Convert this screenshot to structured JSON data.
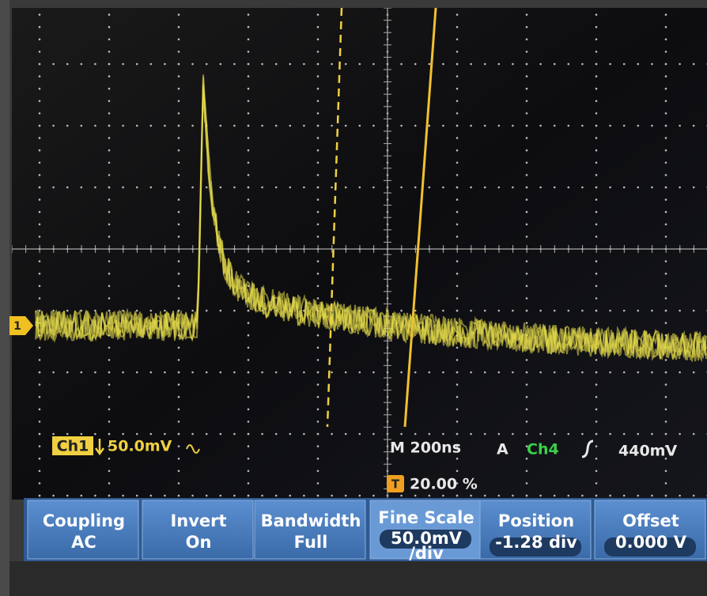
{
  "screen": {
    "channel_marker": "1",
    "status": {
      "channel": "Ch1",
      "scale": "50.0mV",
      "timebase": "M 200ns",
      "trigger_mode": "A",
      "trigger_source": "Ch4",
      "trigger_level": "440mV",
      "trigger_icon": "T",
      "trigger_position": "20.00 %"
    }
  },
  "menu": [
    {
      "label": "Coupling",
      "value": "AC"
    },
    {
      "label": "Invert",
      "value": "On"
    },
    {
      "label": "Bandwidth",
      "value": "Full"
    },
    {
      "label": "Fine Scale",
      "value": "50.0mV",
      "unit": "/div"
    },
    {
      "label": "Position",
      "value": "-1.28 div"
    },
    {
      "label": "Offset",
      "value": "0.000 V"
    }
  ]
}
